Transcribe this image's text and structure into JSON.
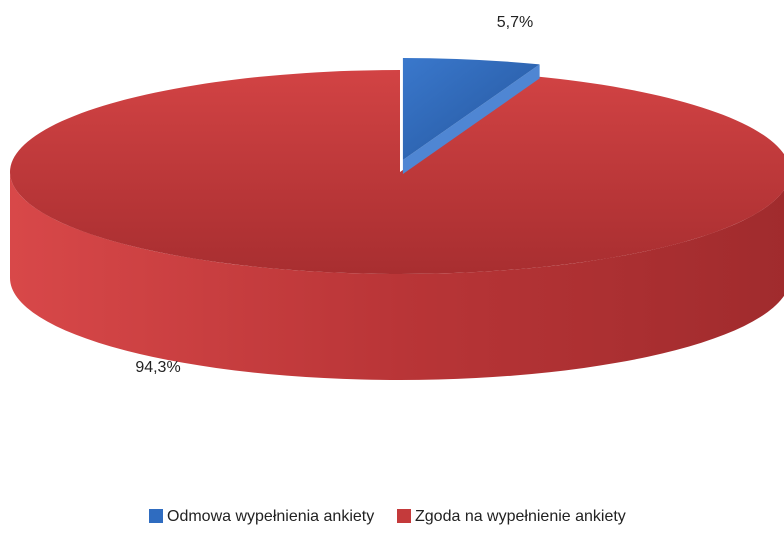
{
  "chart_data": {
    "type": "pie",
    "categories": [
      "Odmowa wypełnienia ankiety",
      "Zgoda na wypełnienie ankiety"
    ],
    "values": [
      5.7,
      94.3
    ],
    "value_labels": [
      "5,7%",
      "94,3%"
    ],
    "colors": [
      "#2f6cc0",
      "#c43a3b"
    ],
    "legend": "bottom"
  }
}
